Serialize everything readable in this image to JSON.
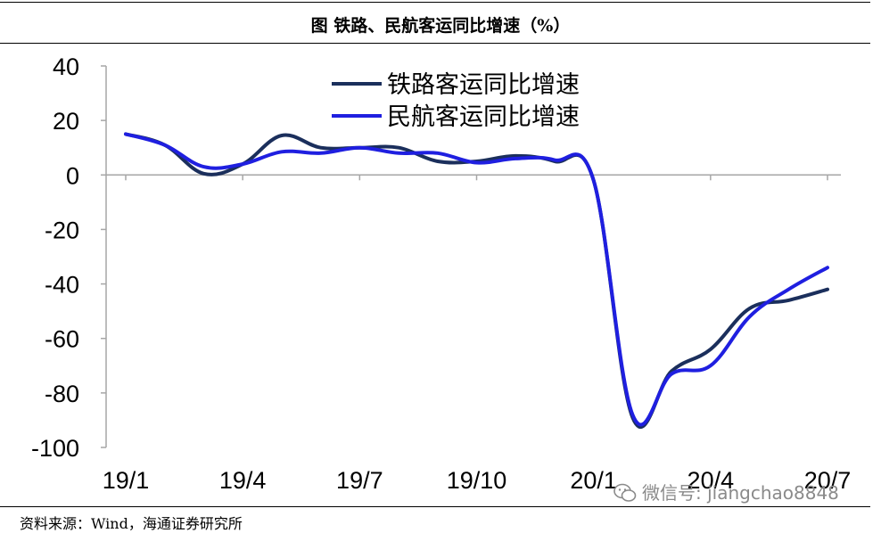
{
  "header": {
    "title": "图  铁路、民航客运同比增速（%）"
  },
  "footer": {
    "source": "资料来源：Wind，海通证券研究所"
  },
  "watermark": {
    "text": "微信号: jiangchao8848",
    "icon": "wechat-icon"
  },
  "colors": {
    "rail": "#1b2f5c",
    "air": "#1f1fe0",
    "axis": "#a6a6a6"
  },
  "chart_data": {
    "type": "line",
    "title": "",
    "xlabel": "",
    "ylabel": "",
    "ylim": [
      -100,
      40
    ],
    "yticks": [
      "40",
      "20",
      "0",
      "-20",
      "-40",
      "-60",
      "-80",
      "-100"
    ],
    "xticks": [
      "19/1",
      "19/4",
      "19/7",
      "19/10",
      "20/1",
      "20/4",
      "20/7"
    ],
    "grid": false,
    "legend": "top-center",
    "x": [
      "19/1",
      "19/2",
      "19/3",
      "19/4",
      "19/5",
      "19/6",
      "19/7",
      "19/8",
      "19/9",
      "19/10",
      "19/11",
      "19/12",
      "20/1",
      "20/2",
      "20/3",
      "20/4",
      "20/5",
      "20/6",
      "20/7"
    ],
    "series": [
      {
        "name": "铁路客运同比增速",
        "values": [
          15,
          11,
          0.5,
          4,
          14.5,
          10,
          10,
          10,
          5,
          5,
          7,
          5,
          -2,
          -89,
          -72,
          -64,
          -49,
          -46,
          -42
        ]
      },
      {
        "name": "民航客运同比增速",
        "values": [
          15,
          11,
          3,
          4,
          8.5,
          8,
          10,
          8,
          8,
          4.5,
          6,
          5.5,
          -2,
          -88,
          -73,
          -70,
          -52,
          -42,
          -34
        ]
      }
    ]
  }
}
